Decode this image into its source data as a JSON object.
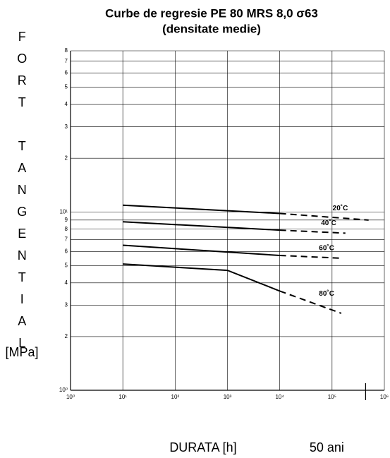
{
  "chart_data": {
    "type": "line",
    "title": "Curbe de regresie PE 80 MRS 8,0 σ63",
    "subtitle": "(densitate medie)",
    "y_label": "FORT TANGENTIAL",
    "y_unit": "[MPa]",
    "x_label": "DURATA [h]",
    "x_log": true,
    "y_log": true,
    "grid": true,
    "xlim": [
      1,
      1000000
    ],
    "xticks": [
      {
        "value": 1,
        "label": "10⁰"
      },
      {
        "value": 10,
        "label": "10¹"
      },
      {
        "value": 100,
        "label": "10²"
      },
      {
        "value": 1000,
        "label": "10³"
      },
      {
        "value": 10000,
        "label": "10⁴"
      },
      {
        "value": 100000,
        "label": "10⁵"
      },
      {
        "value": 1000000,
        "label": "10⁶"
      }
    ],
    "ylim": [
      1,
      80
    ],
    "yticks": [
      {
        "value": 1,
        "label": "10⁰"
      },
      2,
      3,
      4,
      5,
      6,
      7,
      8,
      9,
      {
        "value": 10,
        "label": "10¹"
      },
      {
        "value": 20,
        "label": "2"
      },
      {
        "value": 30,
        "label": "3"
      },
      {
        "value": 40,
        "label": "4"
      },
      {
        "value": 50,
        "label": "5"
      },
      {
        "value": 60,
        "label": "6"
      },
      {
        "value": 70,
        "label": "7"
      },
      {
        "value": 80,
        "label": "8"
      }
    ],
    "extrapolated_from": 10000,
    "marker": {
      "x": 438000,
      "label": "50 ani"
    },
    "series": [
      {
        "name": "20˚C",
        "color": "#000000",
        "x": [
          10,
          10000,
          500000
        ],
        "values": [
          10.9,
          9.8,
          9.0
        ]
      },
      {
        "name": "40˚C",
        "color": "#000000",
        "x": [
          10,
          10000,
          180000
        ],
        "values": [
          8.8,
          7.9,
          7.6
        ]
      },
      {
        "name": "60˚C",
        "color": "#000000",
        "x": [
          10,
          10000,
          150000
        ],
        "values": [
          6.5,
          5.7,
          5.5
        ]
      },
      {
        "name": "80˚C",
        "color": "#000000",
        "x": [
          10,
          1000,
          10000,
          150000
        ],
        "values": [
          5.1,
          4.7,
          3.6,
          2.7
        ]
      }
    ]
  }
}
